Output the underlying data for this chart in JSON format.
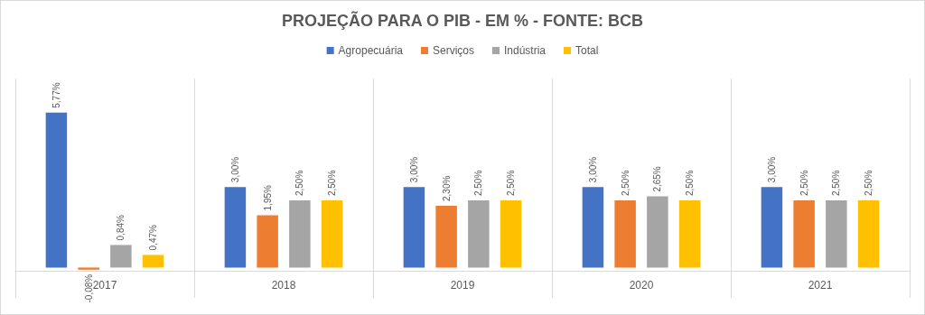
{
  "chart_data": {
    "type": "bar",
    "title": "PROJEÇÃO PARA O PIB - EM % - FONTE: BCB",
    "categories": [
      "2017",
      "2018",
      "2019",
      "2020",
      "2021"
    ],
    "series": [
      {
        "name": "Agropecuária",
        "color": "#4472c4",
        "values": [
          5.77,
          3.0,
          3.0,
          3.0,
          3.0
        ],
        "value_labels": [
          "5,77%",
          "3,00%",
          "3,00%",
          "3,00%",
          "3,00%"
        ]
      },
      {
        "name": "Serviços",
        "color": "#ed7d31",
        "values": [
          -0.08,
          1.95,
          2.3,
          2.5,
          2.5
        ],
        "value_labels": [
          "-0,08%",
          "1,95%",
          "2,30%",
          "2,50%",
          "2,50%"
        ]
      },
      {
        "name": "Indústria",
        "color": "#a5a5a5",
        "values": [
          0.84,
          2.5,
          2.5,
          2.65,
          2.5
        ],
        "value_labels": [
          "0,84%",
          "2,50%",
          "2,50%",
          "2,65%",
          "2,50%"
        ]
      },
      {
        "name": "Total",
        "color": "#ffc000",
        "values": [
          0.47,
          2.5,
          2.5,
          2.5,
          2.5
        ],
        "value_labels": [
          "0,47%",
          "2,50%",
          "2,50%",
          "2,50%",
          "2,50%"
        ]
      }
    ],
    "grid": "x",
    "legend": "top"
  }
}
